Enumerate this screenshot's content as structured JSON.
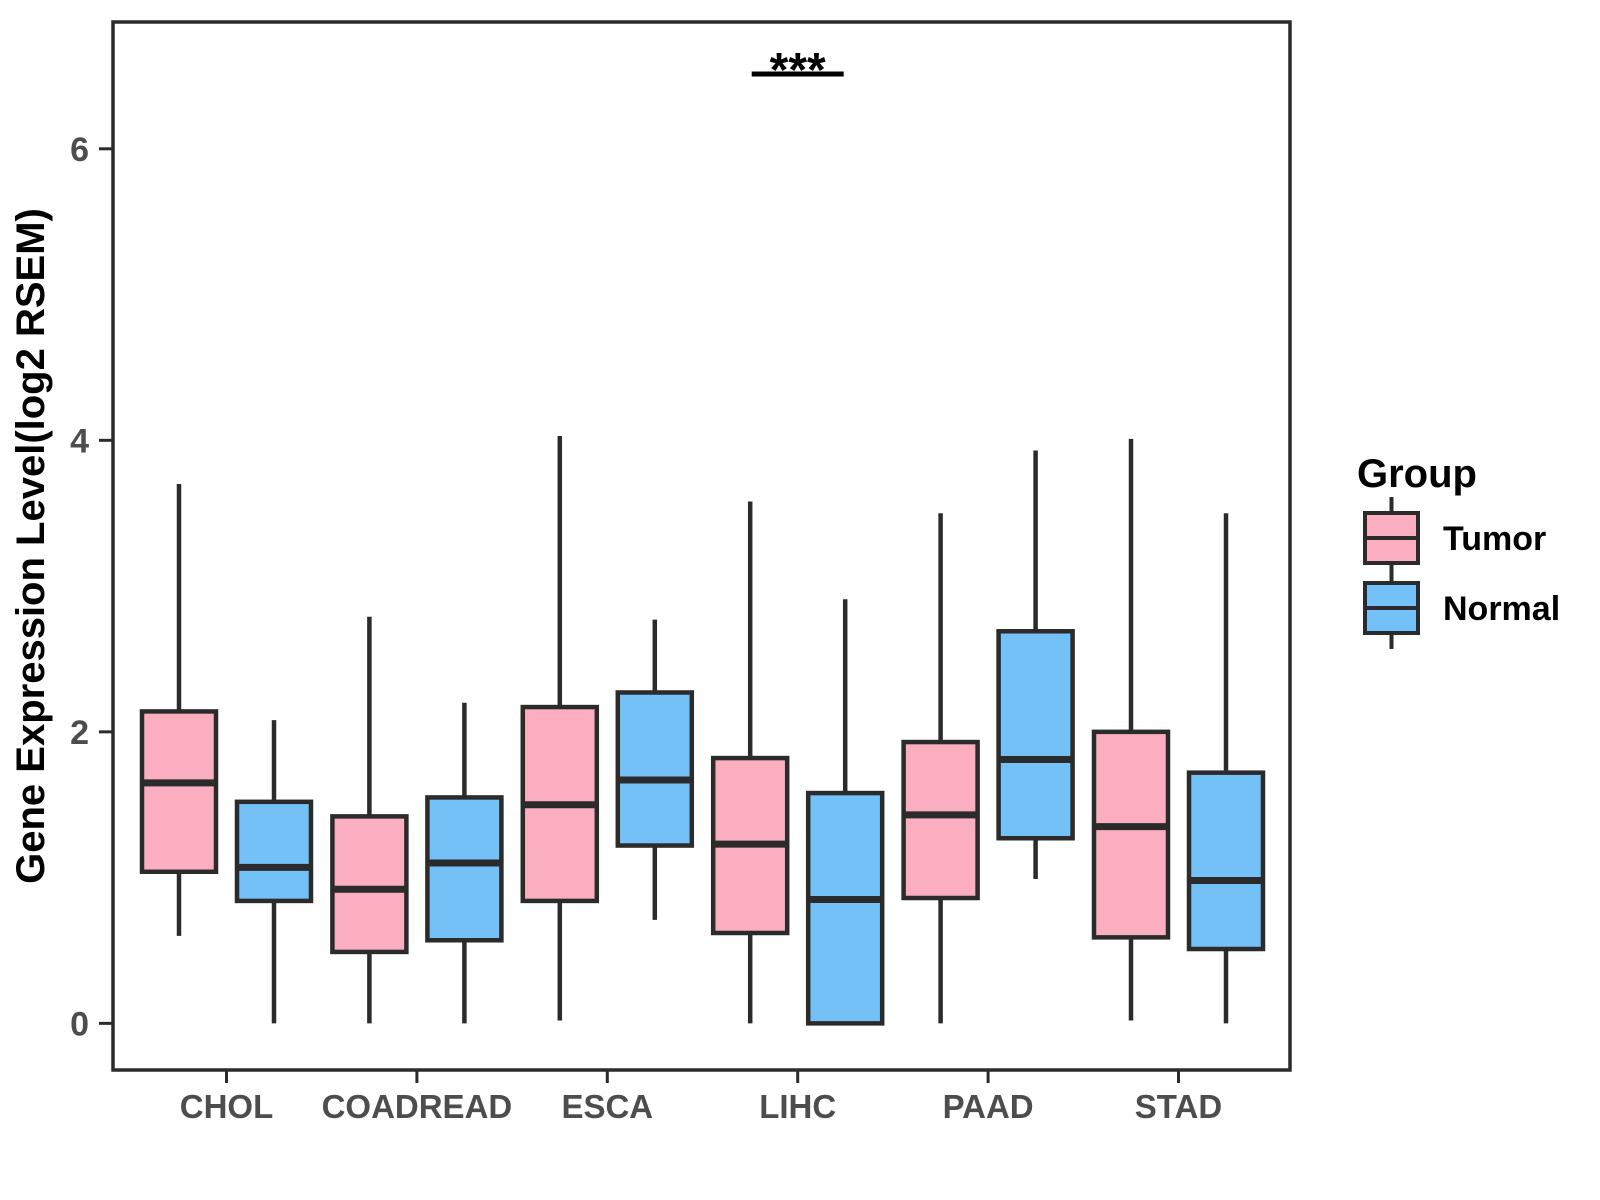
{
  "chart_data": {
    "type": "boxplot",
    "title": "",
    "xlabel": "",
    "ylabel": "Gene Expression Level(log2 RSEM)",
    "ylim": [
      -0.32,
      6.87
    ],
    "yticks": [
      0,
      2,
      4,
      6
    ],
    "grid": false,
    "categories": [
      "CHOL",
      "COADREAD",
      "ESCA",
      "LIHC",
      "PAAD",
      "STAD"
    ],
    "series": [
      {
        "name": "Tumor",
        "color": "#FAAEC0",
        "boxes": [
          {
            "category": "CHOL",
            "whisker_low": 0.6,
            "q1": 1.04,
            "median": 1.65,
            "q3": 2.14,
            "whisker_high": 3.7
          },
          {
            "category": "COADREAD",
            "whisker_low": 0.0,
            "q1": 0.49,
            "median": 0.92,
            "q3": 1.42,
            "whisker_high": 2.79
          },
          {
            "category": "ESCA",
            "whisker_low": 0.02,
            "q1": 0.84,
            "median": 1.5,
            "q3": 2.17,
            "whisker_high": 4.03
          },
          {
            "category": "LIHC",
            "whisker_low": 0.0,
            "q1": 0.62,
            "median": 1.23,
            "q3": 1.82,
            "whisker_high": 3.58
          },
          {
            "category": "PAAD",
            "whisker_low": 0.0,
            "q1": 0.86,
            "median": 1.43,
            "q3": 1.93,
            "whisker_high": 3.5
          },
          {
            "category": "STAD",
            "whisker_low": 0.02,
            "q1": 0.59,
            "median": 1.35,
            "q3": 2.0,
            "whisker_high": 4.01
          }
        ]
      },
      {
        "name": "Normal",
        "color": "#73C1F7",
        "boxes": [
          {
            "category": "CHOL",
            "whisker_low": 0.0,
            "q1": 0.84,
            "median": 1.07,
            "q3": 1.52,
            "whisker_high": 2.08
          },
          {
            "category": "COADREAD",
            "whisker_low": 0.0,
            "q1": 0.57,
            "median": 1.1,
            "q3": 1.55,
            "whisker_high": 2.2
          },
          {
            "category": "ESCA",
            "whisker_low": 0.71,
            "q1": 1.22,
            "median": 1.67,
            "q3": 2.27,
            "whisker_high": 2.77
          },
          {
            "category": "LIHC",
            "whisker_low": 0.0,
            "q1": 0.0,
            "median": 0.85,
            "q3": 1.58,
            "whisker_high": 2.91
          },
          {
            "category": "PAAD",
            "whisker_low": 0.99,
            "q1": 1.27,
            "median": 1.81,
            "q3": 2.69,
            "whisker_high": 3.93
          },
          {
            "category": "STAD",
            "whisker_low": 0.0,
            "q1": 0.51,
            "median": 0.98,
            "q3": 1.72,
            "whisker_high": 3.5
          }
        ]
      }
    ],
    "legend": {
      "title": "Group",
      "position": "right",
      "entries": [
        "Tumor",
        "Normal"
      ]
    },
    "annotations": [
      {
        "type": "significance",
        "category": "LIHC",
        "label": "***"
      }
    ],
    "colors": {
      "tumor_fill": "#FAAEC0",
      "normal_fill": "#73C1F7",
      "box_border": "#2B2B2B",
      "axis": "#2B2B2B",
      "tick_label": "#4D4D4D",
      "background": "#FFFFFF"
    }
  }
}
